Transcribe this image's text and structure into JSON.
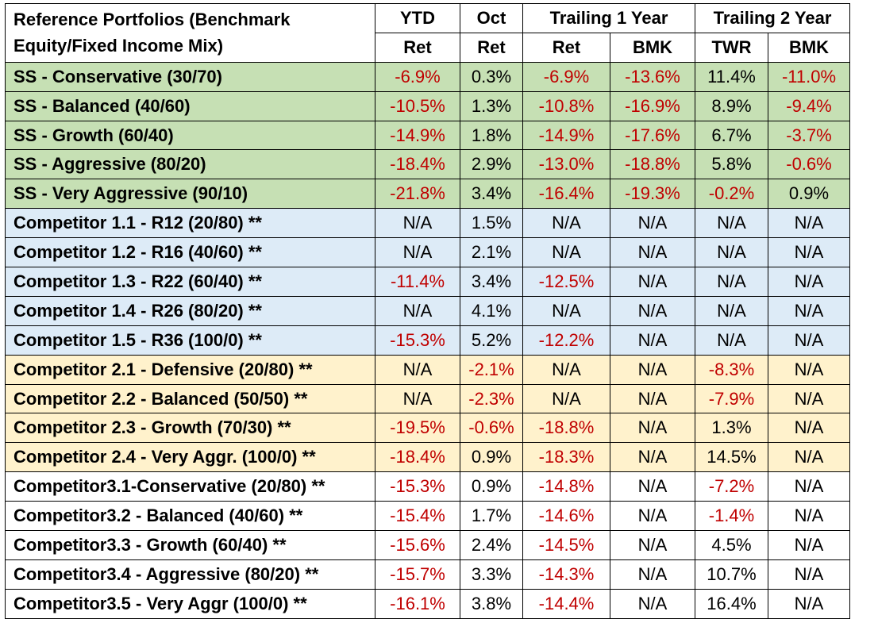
{
  "header": {
    "title": "Reference Portfolios (Benchmark Equity/Fixed Income Mix)",
    "ytd": "YTD",
    "oct": "Oct",
    "trailing1": "Trailing 1 Year",
    "trailing2": "Trailing 2 Year",
    "sub": [
      "Ret",
      "Ret",
      "Ret",
      "BMK",
      "TWR",
      "BMK"
    ]
  },
  "colors": {
    "green": "#c6e0b4",
    "blue": "#ddebf7",
    "orange": "#fff2cc",
    "white": "#ffffff",
    "negative": "#c00000"
  },
  "rows": [
    {
      "group": "green",
      "label": "SS - Conservative (30/70)",
      "values": [
        "-6.9%",
        "0.3%",
        "-6.9%",
        "-13.6%",
        "11.4%",
        "-11.0%"
      ]
    },
    {
      "group": "green",
      "label": "SS - Balanced (40/60)",
      "values": [
        "-10.5%",
        "1.3%",
        "-10.8%",
        "-16.9%",
        "8.9%",
        "-9.4%"
      ]
    },
    {
      "group": "green",
      "label": "SS - Growth (60/40)",
      "values": [
        "-14.9%",
        "1.8%",
        "-14.9%",
        "-17.6%",
        "6.7%",
        "-3.7%"
      ]
    },
    {
      "group": "green",
      "label": "SS - Aggressive (80/20)",
      "values": [
        "-18.4%",
        "2.9%",
        "-13.0%",
        "-18.8%",
        "5.8%",
        "-0.6%"
      ]
    },
    {
      "group": "green",
      "label": "SS - Very Aggressive (90/10)",
      "values": [
        "-21.8%",
        "3.4%",
        "-16.4%",
        "-19.3%",
        "-0.2%",
        "0.9%"
      ]
    },
    {
      "group": "blue",
      "label": "Competitor 1.1 - R12 (20/80) **",
      "values": [
        "N/A",
        "1.5%",
        "N/A",
        "N/A",
        "N/A",
        "N/A"
      ]
    },
    {
      "group": "blue",
      "label": "Competitor 1.2 - R16 (40/60) **",
      "values": [
        "N/A",
        "2.1%",
        "N/A",
        "N/A",
        "N/A",
        "N/A"
      ]
    },
    {
      "group": "blue",
      "label": "Competitor 1.3 - R22 (60/40) **",
      "values": [
        "-11.4%",
        "3.4%",
        "-12.5%",
        "N/A",
        "N/A",
        "N/A"
      ]
    },
    {
      "group": "blue",
      "label": "Competitor 1.4 - R26 (80/20) **",
      "values": [
        "N/A",
        "4.1%",
        "N/A",
        "N/A",
        "N/A",
        "N/A"
      ]
    },
    {
      "group": "blue",
      "label": "Competitor 1.5 - R36 (100/0) **",
      "values": [
        "-15.3%",
        "5.2%",
        "-12.2%",
        "N/A",
        "N/A",
        "N/A"
      ]
    },
    {
      "group": "orange",
      "label": "Competitor 2.1 - Defensive (20/80) **",
      "values": [
        "N/A",
        "-2.1%",
        "N/A",
        "N/A",
        "-8.3%",
        "N/A"
      ]
    },
    {
      "group": "orange",
      "label": "Competitor 2.2 - Balanced (50/50) **",
      "values": [
        "N/A",
        "-2.3%",
        "N/A",
        "N/A",
        "-7.9%",
        "N/A"
      ]
    },
    {
      "group": "orange",
      "label": "Competitor 2.3 - Growth (70/30) **",
      "values": [
        "-19.5%",
        "-0.6%",
        "-18.8%",
        "N/A",
        "1.3%",
        "N/A"
      ]
    },
    {
      "group": "orange",
      "label": "Competitor 2.4 - Very Aggr. (100/0) **",
      "values": [
        "-18.4%",
        "0.9%",
        "-18.3%",
        "N/A",
        "14.5%",
        "N/A"
      ]
    },
    {
      "group": "white",
      "label": "Competitor3.1-Conservative (20/80) **",
      "values": [
        "-15.3%",
        "0.9%",
        "-14.8%",
        "N/A",
        "-7.2%",
        "N/A"
      ]
    },
    {
      "group": "white",
      "label": "Competitor3.2 - Balanced (40/60) **",
      "values": [
        "-15.4%",
        "1.7%",
        "-14.6%",
        "N/A",
        "-1.4%",
        "N/A"
      ]
    },
    {
      "group": "white",
      "label": "Competitor3.3 - Growth (60/40) **",
      "values": [
        "-15.6%",
        "2.4%",
        "-14.5%",
        "N/A",
        "4.5%",
        "N/A"
      ]
    },
    {
      "group": "white",
      "label": "Competitor3.4 - Aggressive (80/20) **",
      "values": [
        "-15.7%",
        "3.3%",
        "-14.3%",
        "N/A",
        "10.7%",
        "N/A"
      ]
    },
    {
      "group": "white",
      "label": "Competitor3.5 - Very Aggr (100/0) **",
      "values": [
        "-16.1%",
        "3.8%",
        "-14.4%",
        "N/A",
        "16.4%",
        "N/A"
      ]
    }
  ]
}
